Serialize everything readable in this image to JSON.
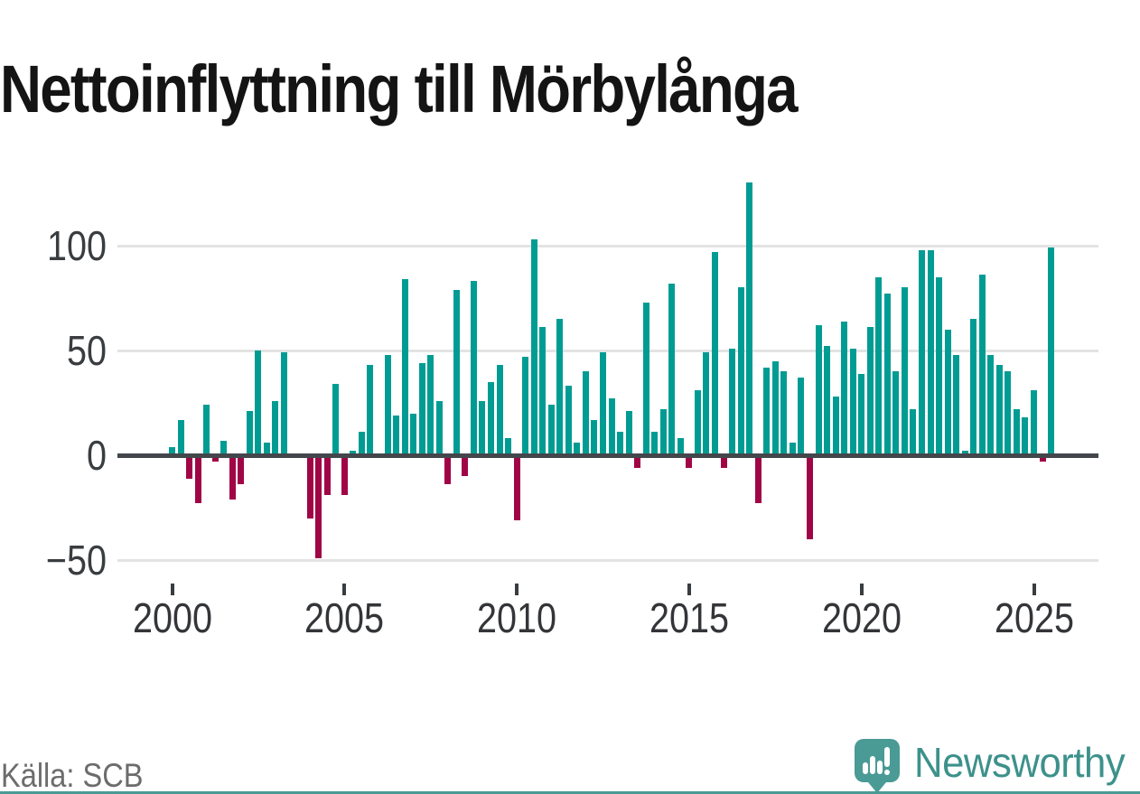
{
  "title": "Nettoinflyttning till Mörbylånga",
  "source": "Källa: SCB",
  "brand": {
    "name": "Newsworthy",
    "icon": "newsworthy-pin-barchart-icon"
  },
  "colors": {
    "positive_bar": "#009c93",
    "negative_bar": "#a00646",
    "zero_line": "#43464b",
    "gridline": "#e3e3e3",
    "axis_text": "#3a3d40",
    "title_text": "#141414",
    "source_text": "#6c6c6c",
    "brand_teal": "#4a9a95",
    "brand_text": "#3d918b"
  },
  "chart_data": {
    "type": "bar",
    "title": "Nettoinflyttning till Mörbylånga",
    "xlabel": "",
    "ylabel": "",
    "frequency": "quarterly",
    "start": "2000 Q1",
    "end": "2025 Q3",
    "ylim": [
      -58,
      140
    ],
    "grid": "horizontal gridlines at 100, 50, -50; thick zero baseline",
    "legend": "none",
    "y_ticks": [
      100,
      50,
      0,
      -50
    ],
    "y_tick_labels": [
      "100",
      "50",
      "0",
      "−50"
    ],
    "x_tick_years": [
      "2000",
      "2005",
      "2010",
      "2015",
      "2020",
      "2025"
    ],
    "x": [
      "2000Q1",
      "2000Q2",
      "2000Q3",
      "2000Q4",
      "2001Q1",
      "2001Q2",
      "2001Q3",
      "2001Q4",
      "2002Q1",
      "2002Q2",
      "2002Q3",
      "2002Q4",
      "2003Q1",
      "2003Q2",
      "2003Q3",
      "2003Q4",
      "2004Q1",
      "2004Q2",
      "2004Q3",
      "2004Q4",
      "2005Q1",
      "2005Q2",
      "2005Q3",
      "2005Q4",
      "2006Q1",
      "2006Q2",
      "2006Q3",
      "2006Q4",
      "2007Q1",
      "2007Q2",
      "2007Q3",
      "2007Q4",
      "2008Q1",
      "2008Q2",
      "2008Q3",
      "2008Q4",
      "2009Q1",
      "2009Q2",
      "2009Q3",
      "2009Q4",
      "2010Q1",
      "2010Q2",
      "2010Q3",
      "2010Q4",
      "2011Q1",
      "2011Q2",
      "2011Q3",
      "2011Q4",
      "2012Q1",
      "2012Q2",
      "2012Q3",
      "2012Q4",
      "2013Q1",
      "2013Q2",
      "2013Q3",
      "2013Q4",
      "2014Q1",
      "2014Q2",
      "2014Q3",
      "2014Q4",
      "2015Q1",
      "2015Q2",
      "2015Q3",
      "2015Q4",
      "2016Q1",
      "2016Q2",
      "2016Q3",
      "2016Q4",
      "2017Q1",
      "2017Q2",
      "2017Q3",
      "2017Q4",
      "2018Q1",
      "2018Q2",
      "2018Q3",
      "2018Q4",
      "2019Q1",
      "2019Q2",
      "2019Q3",
      "2019Q4",
      "2020Q1",
      "2020Q2",
      "2020Q3",
      "2020Q4",
      "2021Q1",
      "2021Q2",
      "2021Q3",
      "2021Q4",
      "2022Q1",
      "2022Q2",
      "2022Q3",
      "2022Q4",
      "2023Q1",
      "2023Q2",
      "2023Q3",
      "2023Q4",
      "2024Q1",
      "2024Q2",
      "2024Q3",
      "2024Q4",
      "2025Q1",
      "2025Q2",
      "2025Q3"
    ],
    "values": [
      4,
      17,
      -11,
      -23,
      24,
      -3,
      7,
      -21,
      -14,
      21,
      50,
      6,
      26,
      49,
      0,
      0,
      -30,
      -49,
      -19,
      34,
      -19,
      2,
      11,
      43,
      0,
      48,
      19,
      84,
      20,
      44,
      48,
      26,
      -14,
      79,
      -10,
      83,
      26,
      35,
      43,
      8,
      -31,
      47,
      103,
      61,
      24,
      65,
      33,
      6,
      40,
      17,
      49,
      27,
      11,
      21,
      -6,
      73,
      11,
      22,
      82,
      8,
      -6,
      31,
      49,
      97,
      -6,
      51,
      80,
      130,
      -23,
      42,
      45,
      40,
      6,
      37,
      -40,
      62,
      52,
      28,
      64,
      51,
      39,
      61,
      85,
      77,
      40,
      80,
      22,
      98,
      98,
      85,
      60,
      48,
      2,
      65,
      86,
      48,
      43,
      40,
      22,
      18,
      31,
      -3,
      99
    ]
  }
}
